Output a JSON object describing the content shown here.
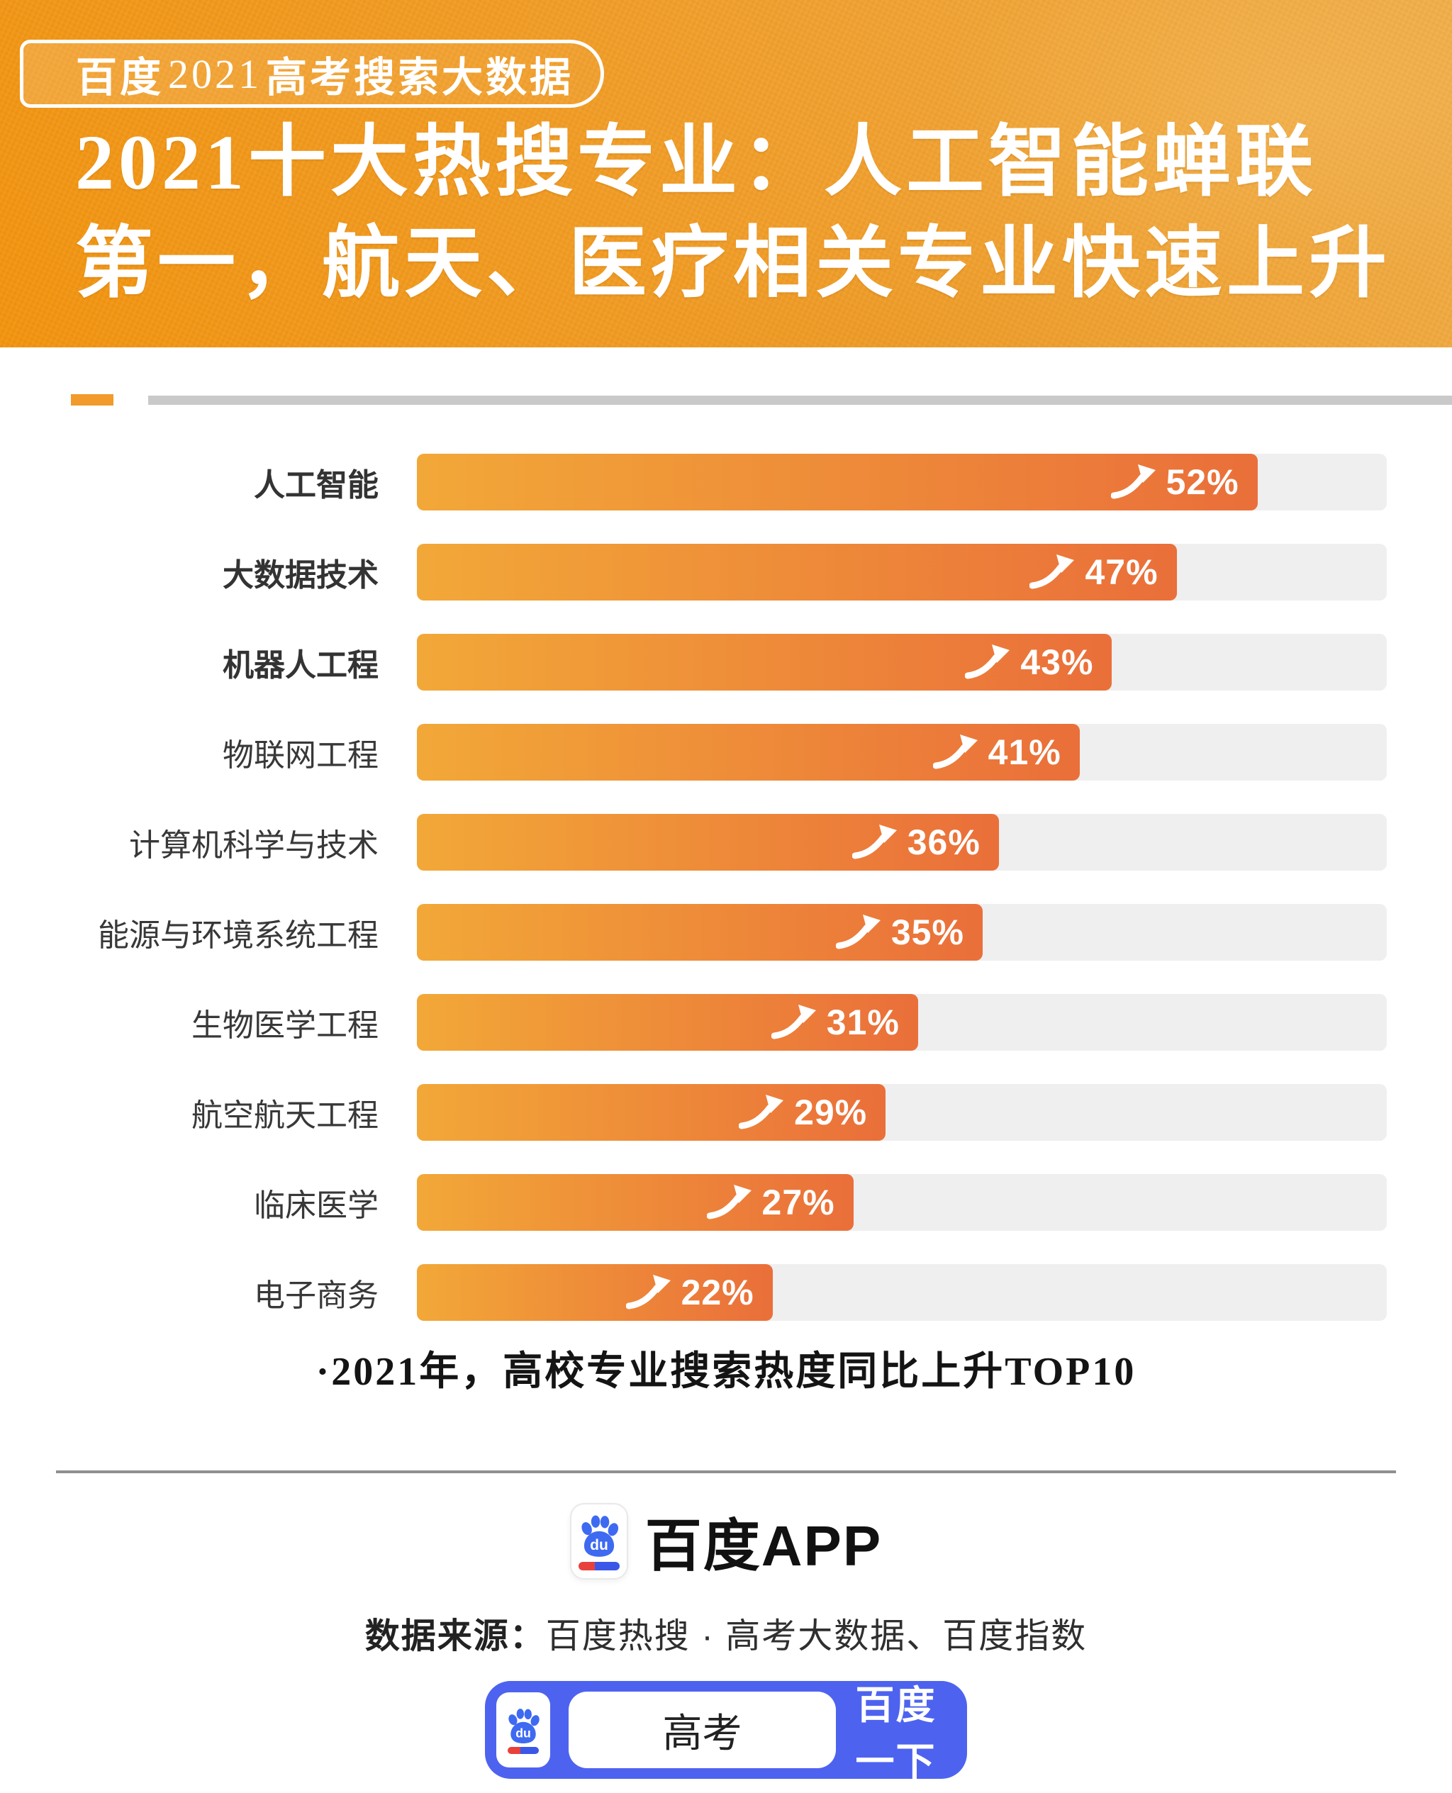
{
  "header": {
    "badge": {
      "brand": "百度",
      "year": "2021",
      "rest": "高考搜索大数据"
    },
    "title_line1": "2021十大热搜专业：人工智能蝉联",
    "title_line2": "第一，航天、医疗相关专业快速上升"
  },
  "chart_data": {
    "type": "bar",
    "orientation": "horizontal",
    "title": "2021十大热搜专业",
    "categories": [
      "人工智能",
      "大数据技术",
      "机器人工程",
      "物联网工程",
      "计算机科学与技术",
      "能源与环境系统工程",
      "生物医学工程",
      "航空航天工程",
      "临床医学",
      "电子商务"
    ],
    "values": [
      52,
      47,
      43,
      41,
      36,
      35,
      31,
      29,
      27,
      22
    ],
    "unit": "%",
    "xlim": [
      0,
      60
    ],
    "grid": false,
    "legend": "none",
    "bar_gradient": [
      "#F2A838",
      "#EA6F3A"
    ],
    "track_color": "#EFEFEF",
    "note": "·2021年，高校专业搜索热度同比上升TOP10"
  },
  "footer": {
    "app_logo_text": "百度APP",
    "du_label": "du",
    "source_label": "数据来源：",
    "source_text": "百度热搜 · 高考大数据、百度指数",
    "search": {
      "query": "高考",
      "button": "百度一下"
    }
  },
  "colors": {
    "header_orange_dark": "#F1930E",
    "header_orange_light": "#EFAC46",
    "accent_orange": "#F29A2B",
    "rule_gray": "#C9C9C9",
    "baidu_blue": "#4D63EF",
    "pill_red": "#E8413C",
    "pill_blue": "#3B57E8"
  }
}
